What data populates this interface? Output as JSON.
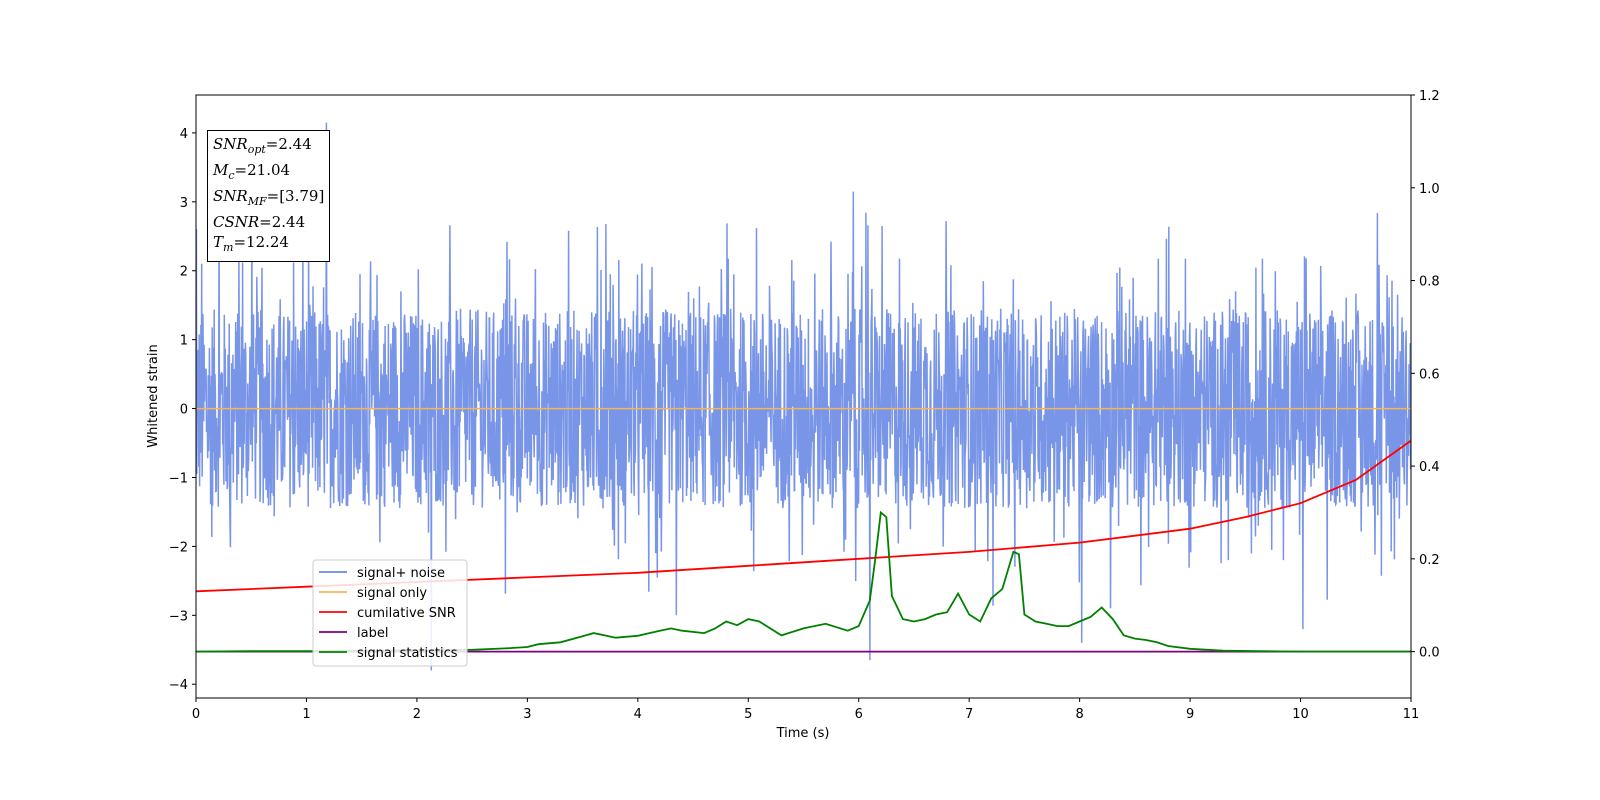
{
  "chart_data": {
    "type": "line",
    "xlabel": "Time (s)",
    "ylabel": "Whitened strain",
    "xlim": [
      0,
      11
    ],
    "ylim_left": [
      -4.2,
      4.55
    ],
    "ylim_right": [
      -0.1,
      1.2
    ],
    "x_ticks": [
      "0",
      "1",
      "2",
      "3",
      "4",
      "5",
      "6",
      "7",
      "8",
      "9",
      "10",
      "11"
    ],
    "y_ticks_left": [
      "4",
      "3",
      "2",
      "1",
      "0",
      "−1",
      "−2",
      "−3",
      "−4"
    ],
    "y_ticks_right": [
      "1.2",
      "1.0",
      "0.8",
      "0.6",
      "0.4",
      "0.2",
      "0.0"
    ],
    "legend_placement": "lower-left",
    "colors": {
      "signal_noise": "#6a8ae6",
      "signal_only": "#f5b45a",
      "cumulative_snr": "#ff0000",
      "label": "#800080",
      "signal_statistics": "#008000"
    },
    "series": [
      {
        "name": "signal+ noise",
        "axis": "left",
        "description_values": "noise band approx ±1.5 with spikes to ±4",
        "peaks": [
          [
            0.05,
            2.1
          ],
          [
            1.18,
            4.15
          ],
          [
            2.13,
            -3.8
          ],
          [
            4.35,
            -3.0
          ],
          [
            5.95,
            3.15
          ],
          [
            6.1,
            -3.65
          ],
          [
            8.02,
            -3.4
          ],
          [
            10.02,
            -3.2
          ]
        ]
      },
      {
        "name": "signal only",
        "axis": "left",
        "x": [
          0,
          11
        ],
        "y": [
          0,
          0
        ]
      },
      {
        "name": "cumilative SNR",
        "axis": "right",
        "x": [
          0,
          1,
          2,
          3,
          4,
          5,
          6,
          7,
          8,
          8.5,
          9,
          9.5,
          10,
          10.5,
          11
        ],
        "y": [
          0.13,
          0.14,
          0.15,
          0.16,
          0.17,
          0.185,
          0.2,
          0.215,
          0.235,
          0.25,
          0.265,
          0.29,
          0.32,
          0.37,
          0.455
        ]
      },
      {
        "name": "label",
        "axis": "right",
        "x": [
          0,
          11
        ],
        "y": [
          0,
          0
        ]
      },
      {
        "name": "signal statistics",
        "axis": "right",
        "x": [
          0,
          0.5,
          1,
          1.5,
          2,
          2.5,
          2.8,
          3,
          3.1,
          3.3,
          3.5,
          3.6,
          3.7,
          3.8,
          4,
          4.2,
          4.3,
          4.4,
          4.6,
          4.7,
          4.8,
          4.9,
          5,
          5.1,
          5.3,
          5.5,
          5.7,
          5.9,
          6,
          6.1,
          6.15,
          6.2,
          6.25,
          6.3,
          6.4,
          6.5,
          6.6,
          6.7,
          6.8,
          6.9,
          7.0,
          7.1,
          7.2,
          7.3,
          7.4,
          7.45,
          7.5,
          7.6,
          7.7,
          7.8,
          7.9,
          8.0,
          8.1,
          8.2,
          8.3,
          8.4,
          8.5,
          8.6,
          8.7,
          8.8,
          9,
          9.3,
          9.6,
          10,
          10.5,
          11
        ],
        "y": [
          0,
          0.001,
          0.001,
          0.002,
          0.003,
          0.004,
          0.007,
          0.01,
          0.016,
          0.02,
          0.033,
          0.04,
          0.035,
          0.03,
          0.034,
          0.045,
          0.05,
          0.045,
          0.04,
          0.05,
          0.065,
          0.057,
          0.07,
          0.065,
          0.035,
          0.05,
          0.06,
          0.045,
          0.055,
          0.11,
          0.2,
          0.3,
          0.29,
          0.12,
          0.07,
          0.065,
          0.07,
          0.08,
          0.085,
          0.125,
          0.08,
          0.065,
          0.115,
          0.135,
          0.215,
          0.21,
          0.08,
          0.065,
          0.06,
          0.055,
          0.055,
          0.065,
          0.075,
          0.095,
          0.07,
          0.035,
          0.028,
          0.025,
          0.02,
          0.012,
          0.006,
          0.002,
          0.001,
          0,
          0,
          0
        ]
      }
    ],
    "info_box": {
      "snr_opt": "2.44",
      "mc": "21.04",
      "snr_mf": "[3.79]",
      "csnr": "2.44",
      "tm": "12.24"
    }
  }
}
